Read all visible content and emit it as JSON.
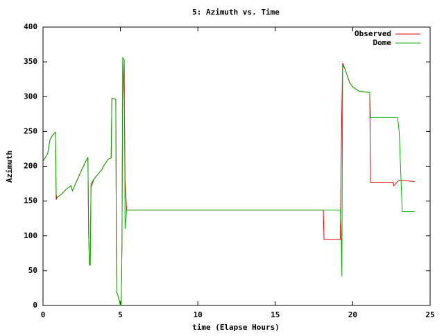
{
  "chart_data": {
    "type": "line",
    "title": "5: Azimuth vs. Time",
    "x_label": "time (Elapse Hours)",
    "y_label": "Azimuth",
    "xlim": [
      0,
      25
    ],
    "xticks": [
      0,
      5,
      10,
      15,
      20,
      25
    ],
    "ylim": [
      0,
      400
    ],
    "yticks": [
      0,
      50,
      100,
      150,
      200,
      250,
      300,
      350,
      400
    ],
    "legend": "top-right",
    "series": [
      {
        "name": "Observed",
        "color": "#e00000",
        "x": [
          0,
          0.3,
          0.45,
          0.6,
          0.8,
          0.82,
          0.85,
          0.9,
          1.2,
          1.5,
          1.8,
          1.9,
          2.1,
          2.5,
          2.9,
          2.95,
          3.0,
          3.05,
          3.1,
          3.3,
          3.6,
          3.8,
          3.9,
          4.2,
          4.4,
          4.45,
          4.7,
          4.75,
          4.9,
          5.0,
          5.05,
          5.1,
          5.15,
          5.25,
          5.3,
          5.4,
          18.1,
          18.15,
          19.2,
          19.25,
          19.3,
          19.35,
          19.5,
          19.8,
          20,
          20.4,
          21.1,
          21.15,
          22.6,
          22.65,
          22.9,
          23,
          24
        ],
        "values": [
          207,
          218,
          238,
          244,
          249,
          215,
          152,
          155,
          160,
          167,
          172,
          165,
          175,
          195,
          213,
          100,
          58,
          58,
          170,
          182,
          190,
          195,
          200,
          210,
          212,
          298,
          296,
          20,
          10,
          0,
          0,
          90,
          356,
          295,
          180,
          137,
          137,
          95,
          95,
          200,
          285,
          348,
          340,
          320,
          314,
          308,
          306,
          177,
          177,
          172,
          178,
          180,
          178
        ]
      },
      {
        "name": "Dome",
        "color": "#00b000",
        "x": [
          0,
          0.3,
          0.45,
          0.6,
          0.8,
          0.82,
          0.85,
          0.9,
          1.2,
          1.5,
          1.8,
          1.9,
          2.1,
          2.5,
          2.9,
          2.95,
          3.0,
          3.05,
          3.1,
          3.3,
          3.6,
          3.8,
          3.9,
          4.2,
          4.4,
          4.45,
          4.7,
          4.75,
          4.9,
          5.0,
          5.05,
          5.1,
          5.15,
          5.25,
          5.3,
          5.4,
          19.2,
          19.25,
          19.3,
          19.35,
          19.5,
          19.8,
          20,
          20.4,
          21.1,
          21.15,
          22.9,
          23,
          23.2,
          24
        ],
        "values": [
          207,
          218,
          238,
          244,
          249,
          215,
          160,
          155,
          160,
          167,
          172,
          165,
          175,
          195,
          213,
          100,
          58,
          58,
          175,
          182,
          190,
          195,
          200,
          210,
          212,
          298,
          296,
          20,
          10,
          0,
          0,
          90,
          356,
          353,
          110,
          137,
          137,
          110,
          42,
          345,
          340,
          320,
          314,
          308,
          306,
          270,
          270,
          250,
          135,
          135
        ]
      }
    ]
  }
}
